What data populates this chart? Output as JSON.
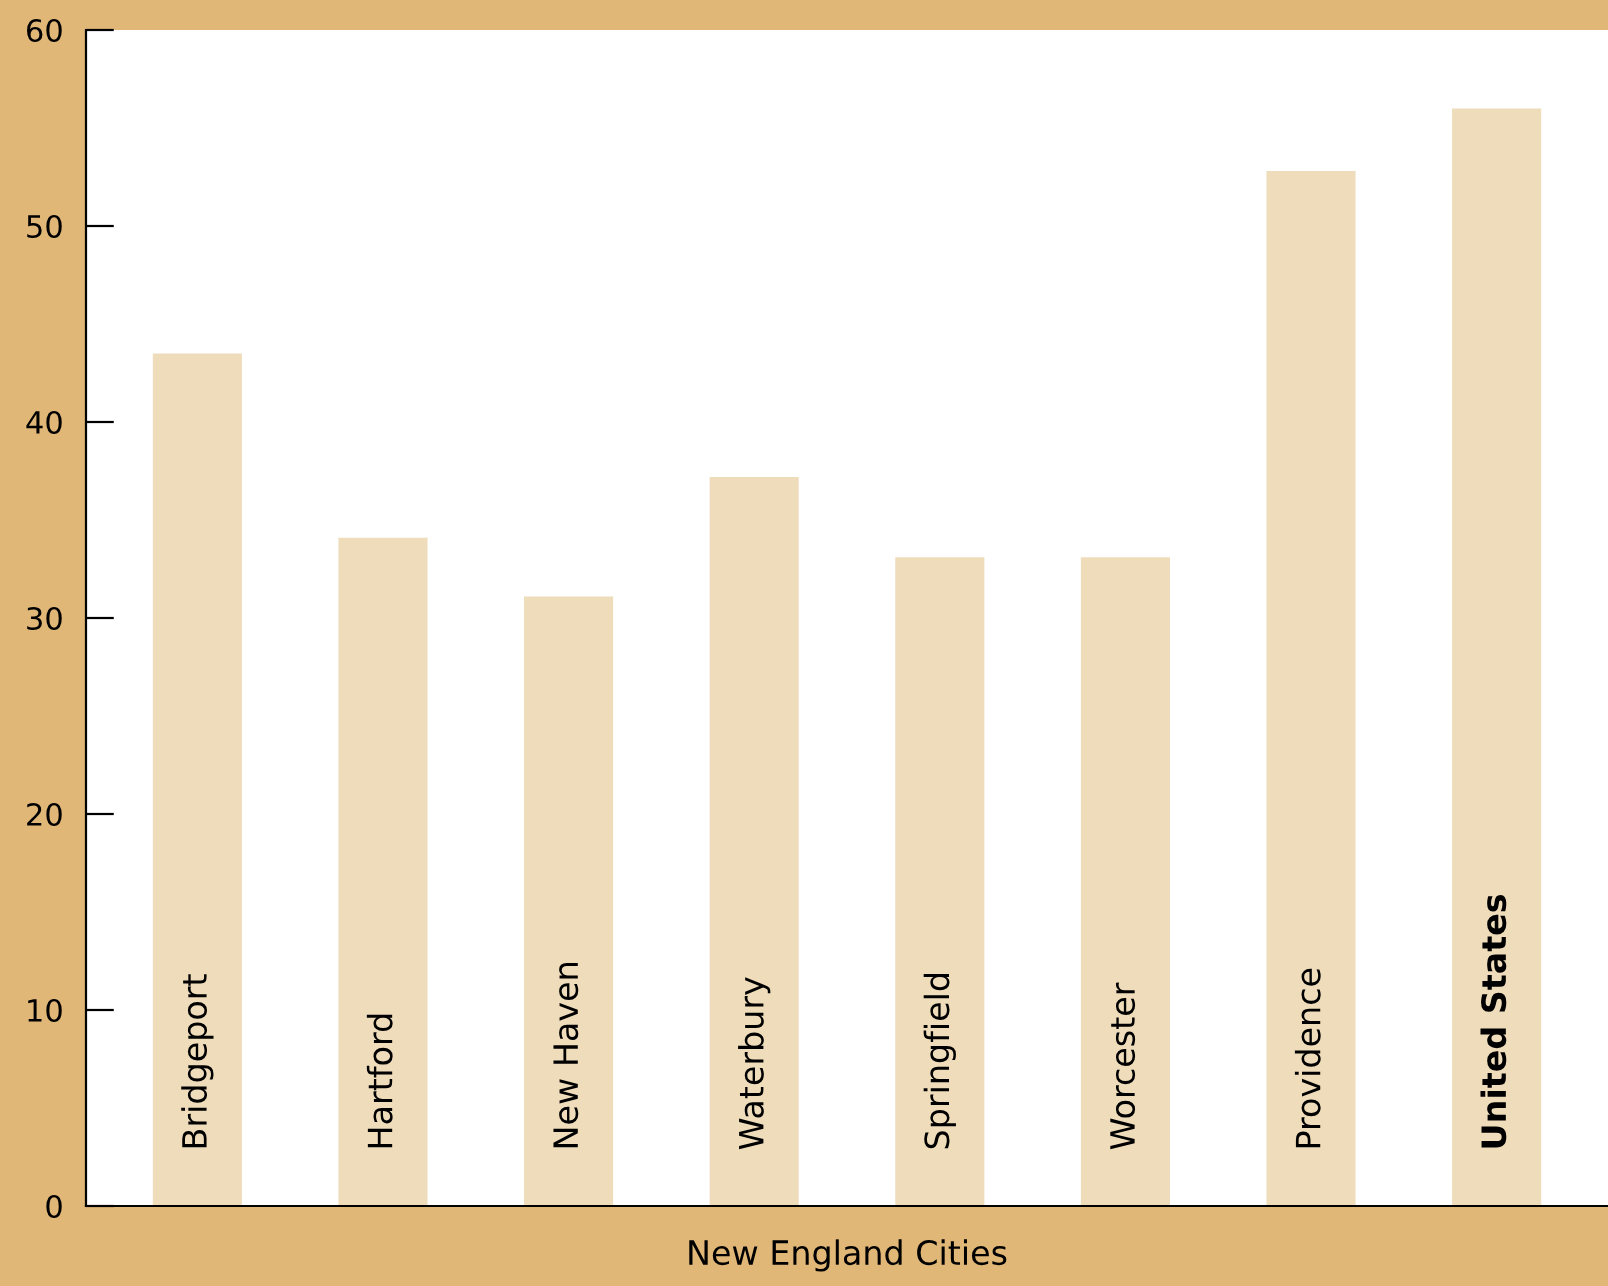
{
  "chart_data": {
    "type": "bar",
    "xlabel": "New England Cities",
    "categories": [
      "Bridgeport",
      "Hartford",
      "New Haven",
      "Waterbury",
      "Springfield",
      "Worcester",
      "Providence",
      "United States"
    ],
    "values": [
      43.5,
      34.1,
      31.1,
      37.2,
      33.1,
      33.1,
      52.8,
      56.0
    ],
    "color": "#eedcba",
    "ylim": [
      0,
      60
    ],
    "yticks": [
      0,
      10,
      20,
      30,
      40,
      50,
      60
    ],
    "grid": false
  }
}
